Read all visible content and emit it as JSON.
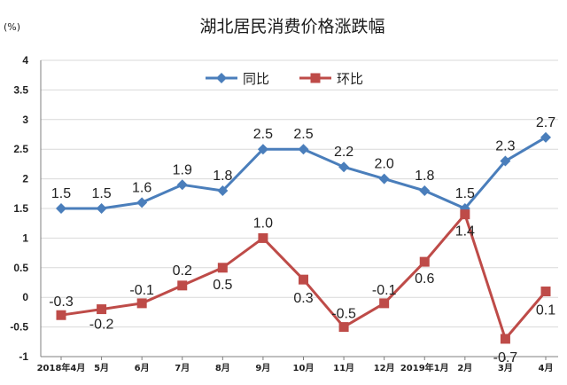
{
  "chart_data": {
    "type": "line",
    "title": "湖北居民消费价格涨跌幅",
    "unit_label": "(%)",
    "categories": [
      "2018年4月",
      "5月",
      "6月",
      "7月",
      "8月",
      "9月",
      "10月",
      "11月",
      "12月",
      "2019年1月",
      "2月",
      "3月",
      "4月"
    ],
    "ylim": [
      -1,
      4
    ],
    "yticks": [
      "-1",
      "-0.5",
      "0",
      "0.5",
      "1",
      "1.5",
      "2",
      "2.5",
      "3",
      "3.5",
      "4"
    ],
    "grid": true,
    "legend_position": "top-center",
    "series": [
      {
        "name": "同比",
        "color": "#4a7ebb",
        "marker": "diamond",
        "values": [
          1.5,
          1.5,
          1.6,
          1.9,
          1.8,
          2.5,
          2.5,
          2.2,
          2.0,
          1.8,
          1.5,
          2.3,
          2.7
        ],
        "labels": [
          "1.5",
          "1.5",
          "1.6",
          "1.9",
          "1.8",
          "2.5",
          "2.5",
          "2.2",
          "2.0",
          "1.8",
          "1.5",
          "2.3",
          "2.7"
        ]
      },
      {
        "name": "环比",
        "color": "#be4b48",
        "marker": "square",
        "values": [
          -0.3,
          -0.2,
          -0.1,
          0.2,
          0.5,
          1.0,
          0.3,
          -0.5,
          -0.1,
          0.6,
          1.4,
          -0.7,
          0.1
        ],
        "labels": [
          "-0.3",
          "-0.2",
          "-0.1",
          "0.2",
          "0.5",
          "1.0",
          "0.3",
          "-0.5",
          "-0.1",
          "0.6",
          "1.4",
          "-0.7",
          "0.1"
        ]
      }
    ]
  }
}
